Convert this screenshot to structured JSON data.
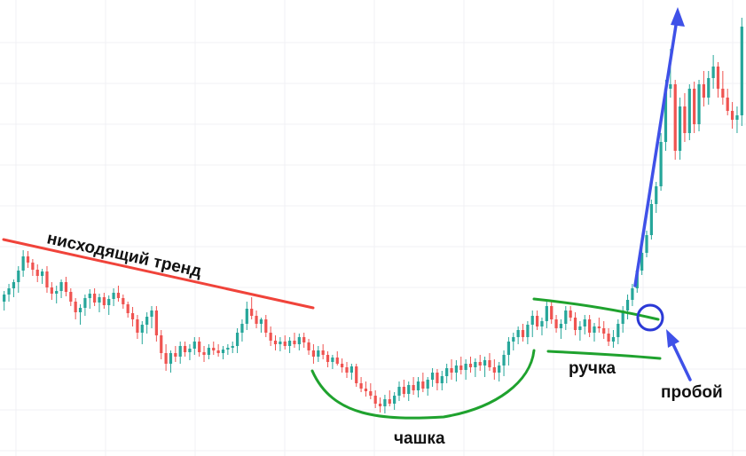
{
  "chart_data": {
    "type": "candlestick",
    "grid": true,
    "colors": {
      "up": "#26a69a",
      "down": "#ef5350",
      "trend": "#f0433a",
      "pattern": "#1fa22e",
      "breakout": "#3f51e8",
      "grid": "#f0f1f4"
    },
    "ylim": [
      0,
      514
    ],
    "candles": [
      {
        "o": 340,
        "h": 350,
        "l": 328,
        "c": 332
      },
      {
        "o": 332,
        "h": 340,
        "l": 320,
        "c": 325
      },
      {
        "o": 325,
        "h": 335,
        "l": 315,
        "c": 318
      },
      {
        "o": 318,
        "h": 330,
        "l": 300,
        "c": 305
      },
      {
        "o": 305,
        "h": 312,
        "l": 282,
        "c": 289
      },
      {
        "o": 289,
        "h": 302,
        "l": 283,
        "c": 296
      },
      {
        "o": 296,
        "h": 311,
        "l": 292,
        "c": 304
      },
      {
        "o": 304,
        "h": 318,
        "l": 298,
        "c": 311
      },
      {
        "o": 311,
        "h": 320,
        "l": 303,
        "c": 306
      },
      {
        "o": 306,
        "h": 330,
        "l": 300,
        "c": 324
      },
      {
        "o": 324,
        "h": 338,
        "l": 318,
        "c": 331
      },
      {
        "o": 331,
        "h": 342,
        "l": 322,
        "c": 328
      },
      {
        "o": 328,
        "h": 336,
        "l": 315,
        "c": 318
      },
      {
        "o": 318,
        "h": 334,
        "l": 312,
        "c": 329
      },
      {
        "o": 329,
        "h": 345,
        "l": 325,
        "c": 340
      },
      {
        "o": 340,
        "h": 360,
        "l": 336,
        "c": 352
      },
      {
        "o": 352,
        "h": 366,
        "l": 343,
        "c": 347
      },
      {
        "o": 347,
        "h": 356,
        "l": 332,
        "c": 336
      },
      {
        "o": 336,
        "h": 348,
        "l": 326,
        "c": 331
      },
      {
        "o": 331,
        "h": 345,
        "l": 325,
        "c": 341
      },
      {
        "o": 341,
        "h": 352,
        "l": 331,
        "c": 335
      },
      {
        "o": 335,
        "h": 348,
        "l": 330,
        "c": 344
      },
      {
        "o": 344,
        "h": 355,
        "l": 333,
        "c": 337
      },
      {
        "o": 337,
        "h": 345,
        "l": 325,
        "c": 330
      },
      {
        "o": 330,
        "h": 340,
        "l": 322,
        "c": 336
      },
      {
        "o": 336,
        "h": 348,
        "l": 332,
        "c": 343
      },
      {
        "o": 343,
        "h": 358,
        "l": 340,
        "c": 353
      },
      {
        "o": 353,
        "h": 368,
        "l": 346,
        "c": 360
      },
      {
        "o": 360,
        "h": 382,
        "l": 355,
        "c": 375
      },
      {
        "o": 375,
        "h": 388,
        "l": 362,
        "c": 366
      },
      {
        "o": 366,
        "h": 376,
        "l": 352,
        "c": 357
      },
      {
        "o": 357,
        "h": 370,
        "l": 345,
        "c": 350
      },
      {
        "o": 350,
        "h": 385,
        "l": 345,
        "c": 378
      },
      {
        "o": 378,
        "h": 405,
        "l": 372,
        "c": 398
      },
      {
        "o": 398,
        "h": 418,
        "l": 388,
        "c": 410
      },
      {
        "o": 410,
        "h": 420,
        "l": 395,
        "c": 398
      },
      {
        "o": 398,
        "h": 408,
        "l": 390,
        "c": 402
      },
      {
        "o": 402,
        "h": 410,
        "l": 385,
        "c": 390
      },
      {
        "o": 390,
        "h": 402,
        "l": 385,
        "c": 397
      },
      {
        "o": 397,
        "h": 406,
        "l": 388,
        "c": 393
      },
      {
        "o": 393,
        "h": 400,
        "l": 380,
        "c": 385
      },
      {
        "o": 385,
        "h": 402,
        "l": 380,
        "c": 397
      },
      {
        "o": 397,
        "h": 408,
        "l": 390,
        "c": 400
      },
      {
        "o": 400,
        "h": 405,
        "l": 388,
        "c": 392
      },
      {
        "o": 392,
        "h": 400,
        "l": 385,
        "c": 395
      },
      {
        "o": 395,
        "h": 402,
        "l": 388,
        "c": 398
      },
      {
        "o": 398,
        "h": 405,
        "l": 390,
        "c": 394
      },
      {
        "o": 394,
        "h": 400,
        "l": 388,
        "c": 392
      },
      {
        "o": 392,
        "h": 398,
        "l": 385,
        "c": 390
      },
      {
        "o": 390,
        "h": 398,
        "l": 370,
        "c": 375
      },
      {
        "o": 375,
        "h": 385,
        "l": 360,
        "c": 365
      },
      {
        "o": 365,
        "h": 372,
        "l": 340,
        "c": 348
      },
      {
        "o": 348,
        "h": 360,
        "l": 335,
        "c": 356
      },
      {
        "o": 356,
        "h": 370,
        "l": 350,
        "c": 365
      },
      {
        "o": 365,
        "h": 375,
        "l": 358,
        "c": 360
      },
      {
        "o": 360,
        "h": 380,
        "l": 355,
        "c": 375
      },
      {
        "o": 375,
        "h": 390,
        "l": 368,
        "c": 384
      },
      {
        "o": 384,
        "h": 395,
        "l": 378,
        "c": 388
      },
      {
        "o": 388,
        "h": 396,
        "l": 380,
        "c": 385
      },
      {
        "o": 385,
        "h": 394,
        "l": 378,
        "c": 390
      },
      {
        "o": 390,
        "h": 398,
        "l": 380,
        "c": 384
      },
      {
        "o": 384,
        "h": 392,
        "l": 375,
        "c": 388
      },
      {
        "o": 388,
        "h": 395,
        "l": 376,
        "c": 380
      },
      {
        "o": 380,
        "h": 392,
        "l": 375,
        "c": 386
      },
      {
        "o": 386,
        "h": 400,
        "l": 382,
        "c": 395
      },
      {
        "o": 395,
        "h": 410,
        "l": 388,
        "c": 402
      },
      {
        "o": 402,
        "h": 408,
        "l": 390,
        "c": 395
      },
      {
        "o": 395,
        "h": 405,
        "l": 388,
        "c": 400
      },
      {
        "o": 400,
        "h": 414,
        "l": 396,
        "c": 408
      },
      {
        "o": 408,
        "h": 416,
        "l": 400,
        "c": 403
      },
      {
        "o": 403,
        "h": 412,
        "l": 396,
        "c": 410
      },
      {
        "o": 410,
        "h": 420,
        "l": 404,
        "c": 414
      },
      {
        "o": 414,
        "h": 426,
        "l": 408,
        "c": 420
      },
      {
        "o": 420,
        "h": 428,
        "l": 410,
        "c": 413
      },
      {
        "o": 413,
        "h": 436,
        "l": 410,
        "c": 432
      },
      {
        "o": 432,
        "h": 442,
        "l": 425,
        "c": 438
      },
      {
        "o": 438,
        "h": 447,
        "l": 430,
        "c": 441
      },
      {
        "o": 441,
        "h": 450,
        "l": 432,
        "c": 446
      },
      {
        "o": 446,
        "h": 460,
        "l": 440,
        "c": 455
      },
      {
        "o": 455,
        "h": 465,
        "l": 448,
        "c": 458
      },
      {
        "o": 458,
        "h": 466,
        "l": 445,
        "c": 450
      },
      {
        "o": 450,
        "h": 458,
        "l": 440,
        "c": 455
      },
      {
        "o": 455,
        "h": 462,
        "l": 442,
        "c": 446
      },
      {
        "o": 446,
        "h": 452,
        "l": 430,
        "c": 436
      },
      {
        "o": 436,
        "h": 448,
        "l": 428,
        "c": 444
      },
      {
        "o": 444,
        "h": 452,
        "l": 430,
        "c": 434
      },
      {
        "o": 434,
        "h": 445,
        "l": 425,
        "c": 440
      },
      {
        "o": 440,
        "h": 448,
        "l": 425,
        "c": 430
      },
      {
        "o": 430,
        "h": 442,
        "l": 420,
        "c": 438
      },
      {
        "o": 438,
        "h": 446,
        "l": 425,
        "c": 428
      },
      {
        "o": 428,
        "h": 436,
        "l": 415,
        "c": 420
      },
      {
        "o": 420,
        "h": 440,
        "l": 416,
        "c": 432
      },
      {
        "o": 432,
        "h": 440,
        "l": 418,
        "c": 424
      },
      {
        "o": 424,
        "h": 432,
        "l": 410,
        "c": 415
      },
      {
        "o": 415,
        "h": 428,
        "l": 405,
        "c": 420
      },
      {
        "o": 420,
        "h": 430,
        "l": 406,
        "c": 412
      },
      {
        "o": 412,
        "h": 422,
        "l": 402,
        "c": 417
      },
      {
        "o": 417,
        "h": 428,
        "l": 405,
        "c": 410
      },
      {
        "o": 410,
        "h": 420,
        "l": 402,
        "c": 414
      },
      {
        "o": 414,
        "h": 425,
        "l": 404,
        "c": 408
      },
      {
        "o": 408,
        "h": 418,
        "l": 400,
        "c": 412
      },
      {
        "o": 412,
        "h": 425,
        "l": 402,
        "c": 406
      },
      {
        "o": 406,
        "h": 418,
        "l": 398,
        "c": 414
      },
      {
        "o": 414,
        "h": 428,
        "l": 405,
        "c": 420
      },
      {
        "o": 420,
        "h": 430,
        "l": 408,
        "c": 412
      },
      {
        "o": 412,
        "h": 424,
        "l": 395,
        "c": 400
      },
      {
        "o": 400,
        "h": 412,
        "l": 380,
        "c": 385
      },
      {
        "o": 385,
        "h": 395,
        "l": 375,
        "c": 380
      },
      {
        "o": 380,
        "h": 388,
        "l": 368,
        "c": 372
      },
      {
        "o": 372,
        "h": 385,
        "l": 365,
        "c": 380
      },
      {
        "o": 380,
        "h": 388,
        "l": 362,
        "c": 366
      },
      {
        "o": 366,
        "h": 380,
        "l": 350,
        "c": 356
      },
      {
        "o": 356,
        "h": 372,
        "l": 350,
        "c": 368
      },
      {
        "o": 368,
        "h": 378,
        "l": 358,
        "c": 362
      },
      {
        "o": 362,
        "h": 370,
        "l": 340,
        "c": 345
      },
      {
        "o": 345,
        "h": 365,
        "l": 340,
        "c": 360
      },
      {
        "o": 360,
        "h": 375,
        "l": 355,
        "c": 370
      },
      {
        "o": 370,
        "h": 382,
        "l": 360,
        "c": 365
      },
      {
        "o": 365,
        "h": 372,
        "l": 345,
        "c": 350
      },
      {
        "o": 350,
        "h": 362,
        "l": 345,
        "c": 358
      },
      {
        "o": 358,
        "h": 378,
        "l": 352,
        "c": 372
      },
      {
        "o": 372,
        "h": 384,
        "l": 362,
        "c": 368
      },
      {
        "o": 368,
        "h": 377,
        "l": 355,
        "c": 360
      },
      {
        "o": 360,
        "h": 380,
        "l": 355,
        "c": 375
      },
      {
        "o": 375,
        "h": 385,
        "l": 364,
        "c": 368
      },
      {
        "o": 368,
        "h": 375,
        "l": 358,
        "c": 370
      },
      {
        "o": 370,
        "h": 382,
        "l": 362,
        "c": 376
      },
      {
        "o": 376,
        "h": 390,
        "l": 370,
        "c": 385
      },
      {
        "o": 385,
        "h": 392,
        "l": 372,
        "c": 380
      },
      {
        "o": 380,
        "h": 388,
        "l": 360,
        "c": 365
      },
      {
        "o": 365,
        "h": 375,
        "l": 345,
        "c": 350
      },
      {
        "o": 350,
        "h": 360,
        "l": 332,
        "c": 338
      },
      {
        "o": 338,
        "h": 345,
        "l": 320,
        "c": 325
      },
      {
        "o": 325,
        "h": 330,
        "l": 300,
        "c": 305
      },
      {
        "o": 305,
        "h": 310,
        "l": 280,
        "c": 285
      },
      {
        "o": 285,
        "h": 290,
        "l": 260,
        "c": 265
      },
      {
        "o": 265,
        "h": 270,
        "l": 225,
        "c": 230
      },
      {
        "o": 230,
        "h": 240,
        "l": 205,
        "c": 210
      },
      {
        "o": 210,
        "h": 215,
        "l": 150,
        "c": 160
      },
      {
        "o": 160,
        "h": 170,
        "l": 90,
        "c": 100
      },
      {
        "o": 100,
        "h": 110,
        "l": 55,
        "c": 95
      },
      {
        "o": 95,
        "h": 180,
        "l": 90,
        "c": 170
      },
      {
        "o": 170,
        "h": 180,
        "l": 110,
        "c": 120
      },
      {
        "o": 120,
        "h": 160,
        "l": 105,
        "c": 150
      },
      {
        "o": 150,
        "h": 158,
        "l": 95,
        "c": 100
      },
      {
        "o": 100,
        "h": 150,
        "l": 92,
        "c": 140
      },
      {
        "o": 140,
        "h": 148,
        "l": 90,
        "c": 95
      },
      {
        "o": 95,
        "h": 120,
        "l": 80,
        "c": 110
      },
      {
        "o": 110,
        "h": 118,
        "l": 80,
        "c": 88
      },
      {
        "o": 88,
        "h": 100,
        "l": 62,
        "c": 75
      },
      {
        "o": 75,
        "h": 110,
        "l": 70,
        "c": 100
      },
      {
        "o": 100,
        "h": 118,
        "l": 80,
        "c": 110
      },
      {
        "o": 110,
        "h": 130,
        "l": 100,
        "c": 125
      },
      {
        "o": 125,
        "h": 145,
        "l": 115,
        "c": 135
      },
      {
        "o": 135,
        "h": 150,
        "l": 120,
        "c": 130
      },
      {
        "o": 130,
        "h": 142,
        "l": 20,
        "c": 30
      }
    ],
    "annotations": {
      "trend_label": "нисходящий тренд",
      "cup_label": "чашка",
      "handle_label": "ручка",
      "breakout_label": "пробой"
    }
  }
}
